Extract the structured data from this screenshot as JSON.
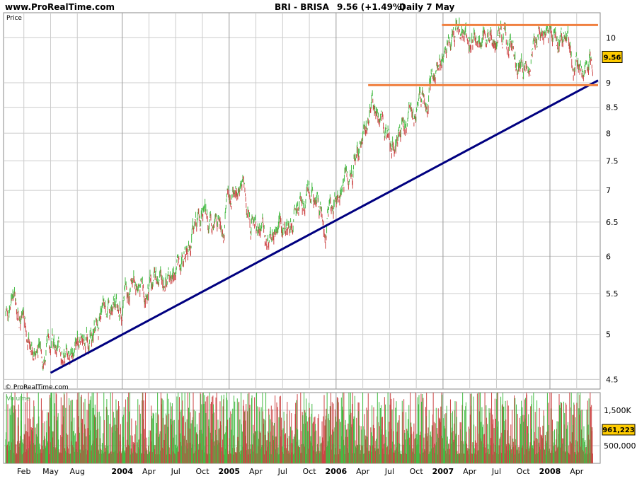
{
  "header": {
    "site": "www.ProRealTime.com",
    "symbol": "BRI - BRISA",
    "last": "9.56 (+1.49%)",
    "period": "Daily  7 May"
  },
  "price_panel": {
    "label": "Price",
    "copyright": "© ProRealTime.com"
  },
  "volume_panel": {
    "label": "Volume"
  },
  "colors": {
    "up": "#44bb44",
    "down": "#cc4444",
    "trend": "#000080",
    "resistance": "#f08040",
    "badge": "#ffcc00",
    "grid": "#cccccc"
  },
  "chart_data": {
    "type": "line",
    "scale": "log",
    "ylim": [
      4.4,
      10.6
    ],
    "yticks": [
      4.5,
      5,
      5.5,
      6,
      6.5,
      7,
      7.5,
      8,
      8.5,
      9,
      10
    ],
    "ytick_labels": [
      "4.5",
      "5",
      "5.5",
      "6",
      "6.5",
      "7",
      "7.5",
      "8",
      "8.5",
      "9",
      "10"
    ],
    "xticks": [
      {
        "label": "Feb",
        "t": 2003.08,
        "bold": false
      },
      {
        "label": "May",
        "t": 2003.33,
        "bold": false
      },
      {
        "label": "Aug",
        "t": 2003.58,
        "bold": false
      },
      {
        "label": "2004",
        "t": 2004.0,
        "bold": true
      },
      {
        "label": "Apr",
        "t": 2004.25,
        "bold": false
      },
      {
        "label": "Jul",
        "t": 2004.5,
        "bold": false
      },
      {
        "label": "Oct",
        "t": 2004.75,
        "bold": false
      },
      {
        "label": "2005",
        "t": 2005.0,
        "bold": true
      },
      {
        "label": "Apr",
        "t": 2005.25,
        "bold": false
      },
      {
        "label": "Jul",
        "t": 2005.5,
        "bold": false
      },
      {
        "label": "Oct",
        "t": 2005.75,
        "bold": false
      },
      {
        "label": "2006",
        "t": 2006.0,
        "bold": true
      },
      {
        "label": "Apr",
        "t": 2006.25,
        "bold": false
      },
      {
        "label": "Jul",
        "t": 2006.5,
        "bold": false
      },
      {
        "label": "Oct",
        "t": 2006.75,
        "bold": false
      },
      {
        "label": "2007",
        "t": 2007.0,
        "bold": true
      },
      {
        "label": "Apr",
        "t": 2007.25,
        "bold": false
      },
      {
        "label": "Jul",
        "t": 2007.5,
        "bold": false
      },
      {
        "label": "Oct",
        "t": 2007.75,
        "bold": false
      },
      {
        "label": "2008",
        "t": 2008.0,
        "bold": true
      },
      {
        "label": "Apr",
        "t": 2008.25,
        "bold": false
      }
    ],
    "price_path": [
      [
        2002.89,
        5.05
      ],
      [
        2002.95,
        5.35
      ],
      [
        2003.0,
        5.45
      ],
      [
        2003.05,
        5.2
      ],
      [
        2003.1,
        5.0
      ],
      [
        2003.2,
        4.95
      ],
      [
        2003.3,
        4.8
      ],
      [
        2003.4,
        4.85
      ],
      [
        2003.5,
        4.85
      ],
      [
        2003.6,
        4.95
      ],
      [
        2003.75,
        5.0
      ],
      [
        2003.85,
        5.3
      ],
      [
        2003.95,
        5.3
      ],
      [
        2004.05,
        5.5
      ],
      [
        2004.1,
        5.85
      ],
      [
        2004.18,
        5.65
      ],
      [
        2004.25,
        5.55
      ],
      [
        2004.35,
        5.65
      ],
      [
        2004.5,
        5.85
      ],
      [
        2004.6,
        6.2
      ],
      [
        2004.7,
        6.55
      ],
      [
        2004.85,
        6.4
      ],
      [
        2004.95,
        6.6
      ],
      [
        2005.05,
        7.1
      ],
      [
        2005.12,
        7.2
      ],
      [
        2005.2,
        6.6
      ],
      [
        2005.3,
        6.4
      ],
      [
        2005.38,
        6.25
      ],
      [
        2005.45,
        6.45
      ],
      [
        2005.55,
        6.5
      ],
      [
        2005.65,
        6.7
      ],
      [
        2005.75,
        6.9
      ],
      [
        2005.85,
        6.65
      ],
      [
        2005.9,
        6.5
      ],
      [
        2005.95,
        6.75
      ],
      [
        2006.05,
        7.1
      ],
      [
        2006.15,
        7.4
      ],
      [
        2006.25,
        7.9
      ],
      [
        2006.33,
        8.6
      ],
      [
        2006.42,
        8.2
      ],
      [
        2006.55,
        7.9
      ],
      [
        2006.65,
        8.1
      ],
      [
        2006.75,
        8.5
      ],
      [
        2006.85,
        8.7
      ],
      [
        2006.95,
        9.4
      ],
      [
        2007.05,
        9.9
      ],
      [
        2007.1,
        10.25
      ],
      [
        2007.2,
        10.0
      ],
      [
        2007.35,
        9.8
      ],
      [
        2007.5,
        10.25
      ],
      [
        2007.6,
        10.0
      ],
      [
        2007.7,
        9.4
      ],
      [
        2007.75,
        9.05
      ],
      [
        2007.82,
        9.6
      ],
      [
        2007.9,
        10.1
      ],
      [
        2008.0,
        10.15
      ],
      [
        2008.1,
        10.1
      ],
      [
        2008.2,
        9.7
      ],
      [
        2008.27,
        9.3
      ],
      [
        2008.33,
        9.0
      ],
      [
        2008.37,
        9.45
      ],
      [
        2008.4,
        9.56
      ]
    ],
    "trend_line": [
      [
        2003.33,
        4.57
      ],
      [
        2008.45,
        9.05
      ]
    ],
    "resistance_lines": [
      {
        "t0": 2006.99,
        "t1": 2008.45,
        "y": 10.3
      },
      {
        "t0": 2006.3,
        "t1": 2008.45,
        "y": 8.95
      }
    ],
    "last_price": 9.56,
    "volume": {
      "ylim": [
        0,
        2000000
      ],
      "tick_labels": [
        "1,500K",
        "500,000"
      ],
      "ticks": [
        1500000,
        500000
      ],
      "last_label": "961,223",
      "last_value": 961223
    }
  }
}
